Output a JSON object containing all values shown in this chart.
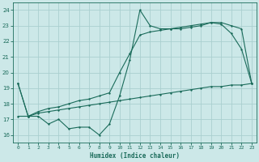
{
  "xlabel": "Humidex (Indice chaleur)",
  "bg_color": "#cce8e8",
  "grid_color": "#aacfcf",
  "line_color": "#1a6b5a",
  "xlim_min": -0.5,
  "xlim_max": 23.5,
  "ylim_min": 15.5,
  "ylim_max": 24.5,
  "xticks": [
    0,
    1,
    2,
    3,
    4,
    5,
    6,
    7,
    8,
    9,
    10,
    11,
    12,
    13,
    14,
    15,
    16,
    17,
    18,
    19,
    20,
    21,
    22,
    23
  ],
  "yticks": [
    16,
    17,
    18,
    19,
    20,
    21,
    22,
    23,
    24
  ],
  "line1_x": [
    0,
    1,
    2,
    3,
    4,
    5,
    6,
    7,
    8,
    9,
    10,
    11,
    12,
    13,
    14,
    15,
    16,
    17,
    18,
    19,
    20,
    21,
    22,
    23
  ],
  "line1_y": [
    19.3,
    17.2,
    17.2,
    16.7,
    17.0,
    16.4,
    16.5,
    16.5,
    16.0,
    16.7,
    18.5,
    20.8,
    24.0,
    23.0,
    22.8,
    22.8,
    22.8,
    22.9,
    23.0,
    23.2,
    23.1,
    22.5,
    21.5,
    19.3
  ],
  "line2_x": [
    0,
    1,
    2,
    3,
    4,
    5,
    6,
    7,
    8,
    9,
    10,
    11,
    12,
    13,
    14,
    15,
    16,
    17,
    18,
    19,
    20,
    21,
    22,
    23
  ],
  "line2_y": [
    19.3,
    17.2,
    17.5,
    17.7,
    17.8,
    18.0,
    18.2,
    18.3,
    18.5,
    18.7,
    20.0,
    21.2,
    22.4,
    22.6,
    22.7,
    22.8,
    22.9,
    23.0,
    23.1,
    23.2,
    23.2,
    23.0,
    22.8,
    19.3
  ],
  "line3_x": [
    0,
    1,
    2,
    3,
    4,
    5,
    6,
    7,
    8,
    9,
    10,
    11,
    12,
    13,
    14,
    15,
    16,
    17,
    18,
    19,
    20,
    21,
    22,
    23
  ],
  "line3_y": [
    17.2,
    17.2,
    17.4,
    17.5,
    17.6,
    17.7,
    17.8,
    17.9,
    18.0,
    18.1,
    18.2,
    18.3,
    18.4,
    18.5,
    18.6,
    18.7,
    18.8,
    18.9,
    19.0,
    19.1,
    19.1,
    19.2,
    19.2,
    19.3
  ]
}
